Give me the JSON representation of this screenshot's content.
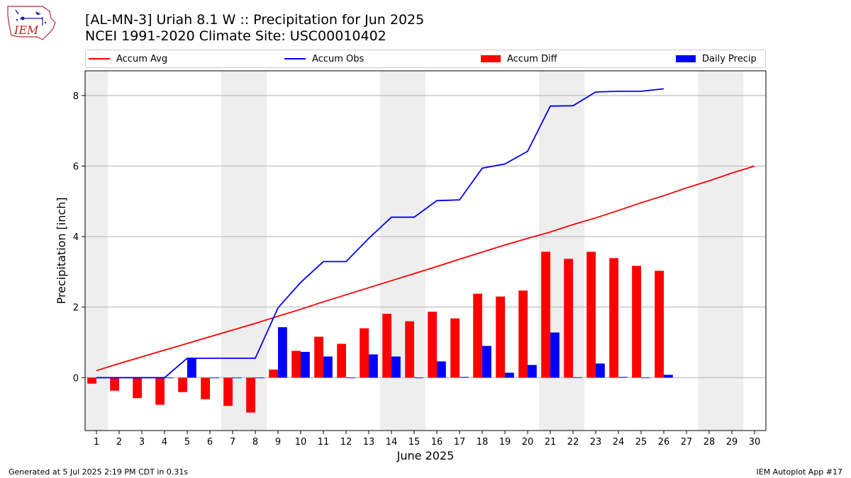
{
  "header": {
    "title_line1": "[AL-MN-3] Uriah 8.1 W :: Precipitation for Jun 2025",
    "title_line2": "NCEI 1991-2020 Climate Site: USC00010402",
    "logo_text": "IEM"
  },
  "legend": {
    "items": [
      {
        "label": "Accum Avg",
        "color": "#ff0000",
        "kind": "line"
      },
      {
        "label": "Accum Obs",
        "color": "#0000ff",
        "kind": "line"
      },
      {
        "label": "Accum Diff",
        "color": "#ff0000",
        "kind": "bar"
      },
      {
        "label": "Daily Precip",
        "color": "#0000ff",
        "kind": "bar"
      }
    ]
  },
  "chart_data": {
    "type": "bar",
    "xlabel": "June 2025",
    "ylabel": "Precipitation [inch]",
    "x": [
      1,
      2,
      3,
      4,
      5,
      6,
      7,
      8,
      9,
      10,
      11,
      12,
      13,
      14,
      15,
      16,
      17,
      18,
      19,
      20,
      21,
      22,
      23,
      24,
      25,
      26,
      27,
      28,
      29,
      30
    ],
    "xlim": [
      0.5,
      30.5
    ],
    "ylim": [
      -1.5,
      8.7
    ],
    "yticks": [
      0,
      2,
      4,
      6,
      8
    ],
    "grid": "horizontal",
    "weekend_shading": [
      1,
      7,
      8,
      14,
      15,
      21,
      22,
      28,
      29
    ],
    "weekend_color": "#eeeeee",
    "series": [
      {
        "name": "Accum Avg",
        "kind": "line",
        "color": "#ff0000",
        "values": [
          0.2,
          0.4,
          0.59,
          0.78,
          0.97,
          1.16,
          1.35,
          1.54,
          1.74,
          1.94,
          2.15,
          2.35,
          2.55,
          2.75,
          2.95,
          3.15,
          3.36,
          3.56,
          3.76,
          3.95,
          4.13,
          4.34,
          4.53,
          4.74,
          4.96,
          5.16,
          5.38,
          5.58,
          5.8,
          6.0
        ]
      },
      {
        "name": "Accum Obs",
        "kind": "line",
        "color": "#0000ff",
        "values": [
          0,
          0,
          0,
          0,
          0.55,
          0.55,
          0.55,
          0.55,
          1.98,
          2.7,
          3.29,
          3.29,
          3.95,
          4.55,
          4.55,
          5.02,
          5.04,
          5.94,
          6.06,
          6.42,
          7.7,
          7.71,
          8.1,
          8.12,
          8.12,
          8.19,
          null,
          null,
          null,
          null
        ]
      },
      {
        "name": "Accum Diff",
        "kind": "bar",
        "color": "#ff0000",
        "values": [
          -0.17,
          -0.37,
          -0.58,
          -0.77,
          -0.41,
          -0.61,
          -0.8,
          -0.99,
          0.23,
          0.76,
          1.16,
          0.96,
          1.4,
          1.81,
          1.6,
          1.87,
          1.68,
          2.38,
          2.3,
          2.47,
          3.57,
          3.37,
          3.57,
          3.39,
          3.17,
          3.03,
          null,
          null,
          null,
          null
        ]
      },
      {
        "name": "Daily Precip",
        "kind": "bar",
        "color": "#0000ff",
        "values": [
          0,
          0,
          0,
          0,
          0.55,
          0,
          0,
          0,
          1.43,
          0.73,
          0.6,
          0,
          0.66,
          0.6,
          0,
          0.46,
          0.02,
          0.9,
          0.14,
          0.36,
          1.28,
          0.01,
          0.4,
          0.02,
          0,
          0.08,
          null,
          null,
          null,
          null
        ]
      }
    ]
  },
  "footer": {
    "left": "Generated at 5 Jul 2025 2:19 PM CDT in 0.31s",
    "right": "IEM Autoplot App #17"
  }
}
